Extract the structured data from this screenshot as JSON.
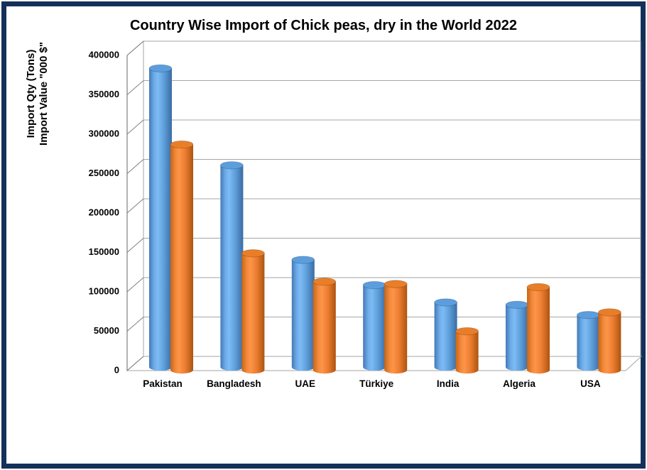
{
  "colors": {
    "frame_border": "#14305A",
    "qty_bar": "#5B9BD5",
    "value_bar": "#ED7D31",
    "gridline": "#A6A6A6",
    "axis_line": "#808080",
    "text": "#000000",
    "background": "#FFFFFF"
  },
  "chart_data": {
    "type": "bar",
    "style": "3d-cylinder",
    "title": "Country Wise Import of Chick peas, dry in the World 2022",
    "ylabel_lines": [
      "Import Qty (Tons)",
      "Import Value \"000 $\""
    ],
    "categories": [
      "Pakistan",
      "Bangladesh",
      "UAE",
      "Türkiye",
      "India",
      "Algeria",
      "USA"
    ],
    "series": [
      {
        "name": "Import Qty (Tons)",
        "color": "#5B9BD5",
        "values": [
          379000,
          256000,
          136000,
          104000,
          82000,
          79000,
          66000
        ]
      },
      {
        "name": "Import Value \"000 $\"",
        "color": "#ED7D31",
        "values": [
          286000,
          148000,
          112000,
          109000,
          49000,
          105000,
          73000
        ]
      }
    ],
    "ylim": [
      0,
      400000
    ],
    "ytick_step": 50000,
    "ytick_labels": [
      "0",
      "50000",
      "100000",
      "150000",
      "200000",
      "250000",
      "300000",
      "350000",
      "400000"
    ],
    "grid": true,
    "legend_position": "none"
  }
}
